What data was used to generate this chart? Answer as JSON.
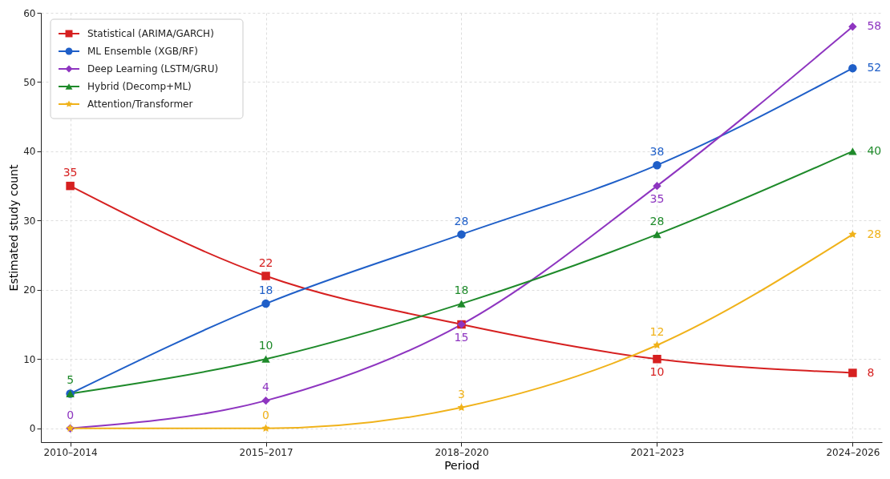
{
  "chart_data": {
    "type": "line",
    "xlabel": "Period",
    "ylabel": "Estimated study count",
    "categories": [
      "2010–2014",
      "2015–2017",
      "2018–2020",
      "2021–2023",
      "2024–2026"
    ],
    "ylim": [
      -2,
      60
    ],
    "yticks": [
      0,
      10,
      20,
      30,
      40,
      50,
      60
    ],
    "grid": true,
    "legend": "top left",
    "line_style": "solid",
    "series": [
      {
        "name": "Statistical (ARIMA/GARCH)",
        "color": "#d62020",
        "marker": "square",
        "values": [
          35,
          22,
          15,
          10,
          8
        ],
        "value_labels": [
          "35",
          "22",
          null,
          "10",
          "8"
        ]
      },
      {
        "name": "ML Ensemble (XGB/RF)",
        "color": "#1f5fc8",
        "marker": "circle",
        "values": [
          5,
          18,
          28,
          38,
          52
        ],
        "value_labels": [
          null,
          "18",
          "28",
          "38",
          "52"
        ]
      },
      {
        "name": "Deep Learning (LSTM/GRU)",
        "color": "#8e35c0",
        "marker": "diamond",
        "values": [
          0,
          4,
          15,
          35,
          58
        ],
        "value_labels": [
          "0",
          "4",
          "15",
          "35",
          "58"
        ]
      },
      {
        "name": "Hybrid (Decomp+ML)",
        "color": "#1e8a2a",
        "marker": "triangle",
        "values": [
          5,
          10,
          18,
          28,
          40
        ],
        "value_labels": [
          "5",
          "10",
          "18",
          "28",
          "40"
        ]
      },
      {
        "name": "Attention/Transformer",
        "color": "#f0b21a",
        "marker": "star",
        "values": [
          0,
          0,
          3,
          12,
          28
        ],
        "value_labels": [
          null,
          "0",
          "3",
          "12",
          "28"
        ]
      }
    ]
  }
}
